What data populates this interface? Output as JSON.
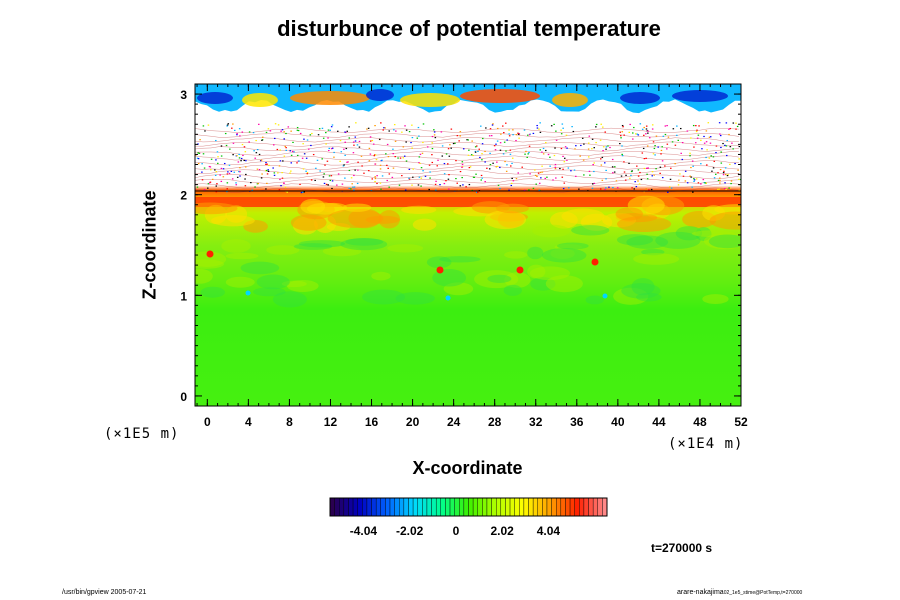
{
  "title": "disturbunce of potential temperature",
  "time_label": "t=270000 s",
  "footer": {
    "left": "/usr/bin/gpview 2005-07-21",
    "right": "arare-nakajima",
    "right_sub": "02_1e5_stime@PotTemp,t=270000"
  },
  "chart_data": {
    "type": "heatmap",
    "title": "disturbunce of potential temperature",
    "xlabel": "X-coordinate",
    "ylabel": "Z-coordinate",
    "x_unit": "(×1E4 m)",
    "y_unit": "(×1E5 m)",
    "xlim": [
      -1.2,
      52
    ],
    "ylim": [
      -0.1,
      3.1
    ],
    "x_ticks": [
      0,
      4,
      8,
      12,
      16,
      20,
      24,
      28,
      32,
      36,
      40,
      44,
      48,
      52
    ],
    "y_ticks": [
      0,
      1,
      2,
      3
    ],
    "colorbar": {
      "range": [
        -5.5,
        6.6
      ],
      "ticks": [
        -4.04,
        -2.02,
        0,
        2.02,
        4.04
      ],
      "tick_labels": [
        "-4.04",
        "-2.02",
        "0",
        "2.02",
        "4.04"
      ],
      "colors": [
        "#2a0050",
        "#0000c0",
        "#0060ff",
        "#00d8ff",
        "#00ff90",
        "#3cf000",
        "#b0ff00",
        "#ffff00",
        "#ffa000",
        "#ff2000",
        "#ff8888"
      ]
    },
    "field_regions": [
      {
        "z_range": [
          0,
          1.0
        ],
        "value": 0.2,
        "color": "#46f000",
        "desc": "lower green"
      },
      {
        "z_range": [
          1.0,
          1.8
        ],
        "value": 0.8,
        "color": "#7cf000",
        "desc": "mid yellow-green"
      },
      {
        "z_range": [
          1.8,
          1.95
        ],
        "value": 4.0,
        "color": "#ff3a00",
        "desc": "red band"
      },
      {
        "z_range": [
          2.0,
          2.75
        ],
        "value": null,
        "color": "#ffffff",
        "desc": "noisy layered region"
      },
      {
        "z_range": [
          2.95,
          3.1
        ],
        "value": -3.0,
        "color": "#00a0ff",
        "desc": "top cold band"
      }
    ]
  }
}
